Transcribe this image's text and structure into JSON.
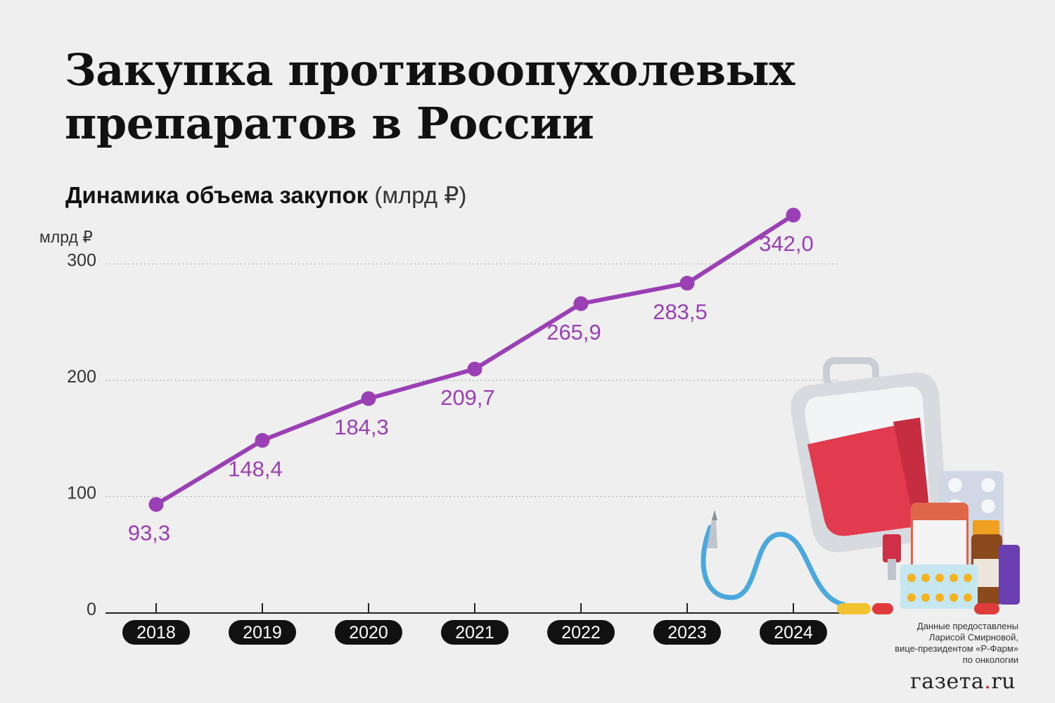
{
  "title_lines": [
    "Закупка противоопухолевых",
    "препаратов в России"
  ],
  "subtitle": {
    "main": "Динамика объема закупок",
    "unit": "(млрд ₽)"
  },
  "source_lines": [
    "Данные предоставлены",
    "Ларисой Смирновой,",
    "вице-президентом «Р-Фарм»",
    "по онкологии"
  ],
  "logo": {
    "main": "газета",
    "dot": ".",
    "tld": "ru"
  },
  "colors": {
    "line": "#9b3fb5",
    "label": "#9b3fb5",
    "pill": "#111111"
  },
  "chart_data": {
    "type": "line",
    "title": "Динамика объема закупок",
    "ylabel": "млрд ₽",
    "xlabel": "",
    "categories": [
      "2018",
      "2019",
      "2020",
      "2021",
      "2022",
      "2023",
      "2024"
    ],
    "values": [
      93.3,
      148.4,
      184.3,
      209.7,
      265.9,
      283.5,
      342.0
    ],
    "value_labels": [
      "93,3",
      "148,4",
      "184,3",
      "209,7",
      "265,9",
      "283,5",
      "342,0"
    ],
    "yticks": [
      0,
      100,
      200,
      300
    ],
    "ylim": [
      0,
      350
    ],
    "grid": true,
    "legend": "none"
  }
}
